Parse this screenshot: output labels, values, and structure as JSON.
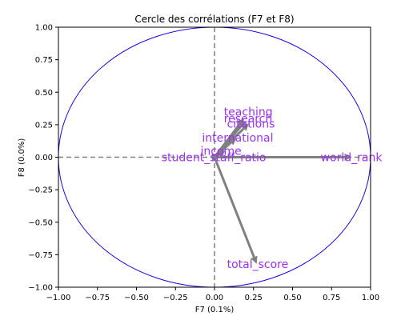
{
  "chart_data": {
    "type": "scatter",
    "title": "Cercle des corrélations (F7 et F8)",
    "xlabel": "F7 (0.1%)",
    "ylabel": "F8 (0.0%)",
    "xlim": [
      -1.0,
      1.0
    ],
    "ylim": [
      -1.0,
      1.0
    ],
    "x_ticks": [
      "−1.00",
      "−0.75",
      "−0.50",
      "−0.25",
      "0.00",
      "0.25",
      "0.50",
      "0.75",
      "1.00"
    ],
    "y_ticks": [
      "−1.00",
      "−0.75",
      "−0.50",
      "−0.25",
      "0.00",
      "0.25",
      "0.50",
      "0.75",
      "1.00"
    ],
    "grid": false,
    "unit_circle": true,
    "arrows": [
      {
        "label": "teaching",
        "x": 0.19,
        "y": 0.3
      },
      {
        "label": "research",
        "x": 0.2,
        "y": 0.28
      },
      {
        "label": "citations",
        "x": 0.22,
        "y": 0.26
      },
      {
        "label": "international",
        "x": 0.14,
        "y": 0.15
      },
      {
        "label": "income",
        "x": 0.07,
        "y": 0.05
      },
      {
        "label": "student_staff_ratio",
        "x": 0.03,
        "y": 0.0
      },
      {
        "label": "world_rank",
        "x": 0.88,
        "y": 0.0
      },
      {
        "label": "total_score",
        "x": 0.27,
        "y": -0.82
      }
    ],
    "label_positions": [
      {
        "x": 0.06,
        "y": 0.35
      },
      {
        "x": 0.06,
        "y": 0.3
      },
      {
        "x": 0.08,
        "y": 0.26
      },
      {
        "x": -0.08,
        "y": 0.15
      },
      {
        "x": -0.09,
        "y": 0.05
      },
      {
        "x": -0.34,
        "y": 0.0
      },
      {
        "x": 0.68,
        "y": 0.0
      },
      {
        "x": 0.08,
        "y": -0.82
      }
    ],
    "colors": {
      "circle": "#2200dd",
      "arrow": "#808080",
      "label": "#9933ee",
      "axis_line": "#808080"
    }
  }
}
